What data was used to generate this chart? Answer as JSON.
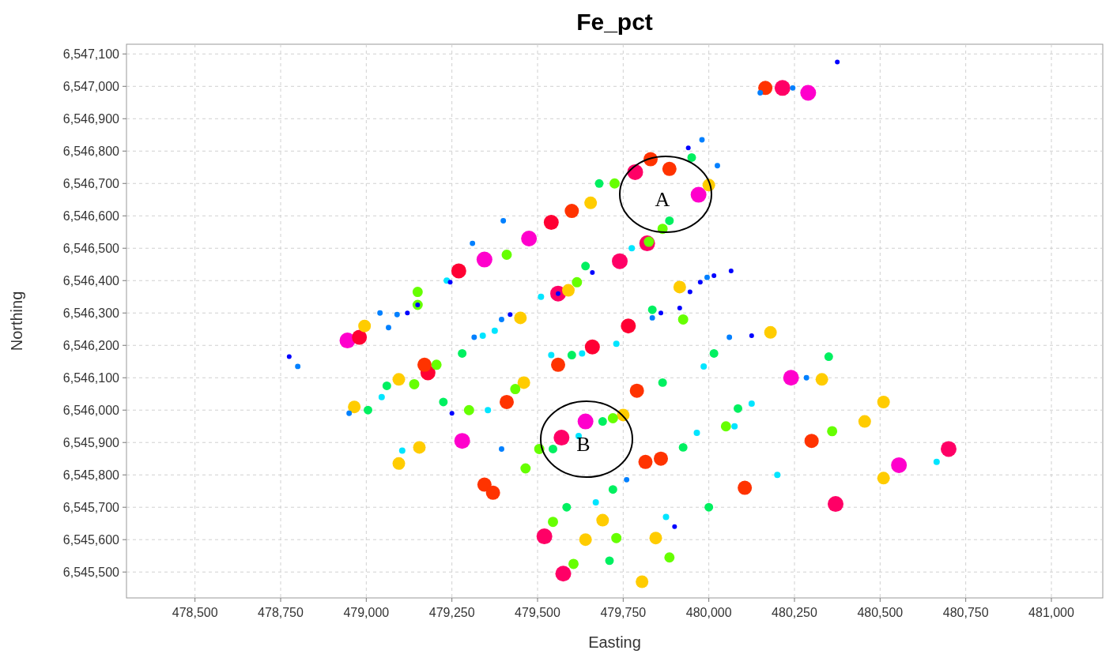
{
  "chart_data": {
    "type": "bubble",
    "title": "Fe_pct",
    "xlabel": "Easting",
    "ylabel": "Northing",
    "xlim": [
      478300,
      481150
    ],
    "ylim": [
      6545420,
      6547130
    ],
    "xticks": [
      {
        "value": 478500,
        "label": "478,500"
      },
      {
        "value": 478750,
        "label": "478,750"
      },
      {
        "value": 479000,
        "label": "479,000"
      },
      {
        "value": 479250,
        "label": "479,250"
      },
      {
        "value": 479500,
        "label": "479,500"
      },
      {
        "value": 479750,
        "label": "479,750"
      },
      {
        "value": 480000,
        "label": "480,000"
      },
      {
        "value": 480250,
        "label": "480,250"
      },
      {
        "value": 480500,
        "label": "480,500"
      },
      {
        "value": 480750,
        "label": "480,750"
      },
      {
        "value": 481000,
        "label": "481,000"
      }
    ],
    "yticks": [
      {
        "value": 6545500,
        "label": "6,545,500"
      },
      {
        "value": 6545600,
        "label": "6,545,600"
      },
      {
        "value": 6545700,
        "label": "6,545,700"
      },
      {
        "value": 6545800,
        "label": "6,545,800"
      },
      {
        "value": 6545900,
        "label": "6,545,900"
      },
      {
        "value": 6546000,
        "label": "6,546,000"
      },
      {
        "value": 6546100,
        "label": "6,546,100"
      },
      {
        "value": 6546200,
        "label": "6,546,200"
      },
      {
        "value": 6546300,
        "label": "6,546,300"
      },
      {
        "value": 6546400,
        "label": "6,546,400"
      },
      {
        "value": 6546500,
        "label": "6,546,500"
      },
      {
        "value": 6546600,
        "label": "6,546,600"
      },
      {
        "value": 6546700,
        "label": "6,546,700"
      },
      {
        "value": 6546800,
        "label": "6,546,800"
      },
      {
        "value": 6546900,
        "label": "6,546,900"
      },
      {
        "value": 6547000,
        "label": "6,547,000"
      },
      {
        "value": 6547100,
        "label": "6,547,100"
      }
    ],
    "grid": true,
    "marker": "circle",
    "annotations": [
      "A",
      "B"
    ],
    "series": [
      {
        "color": "#0000ff",
        "x": [
          480375,
          479940,
          479120,
          479150,
          479245,
          479660,
          480065,
          480015,
          479975,
          479945,
          479860,
          479915,
          479420,
          480125,
          479250,
          479900,
          478775,
          479560
        ],
        "values": [
          6547075,
          6546810,
          6546300,
          6546325,
          6546395,
          6546425,
          6546430,
          6546415,
          6546395,
          6546365,
          6546300,
          6546315,
          6546295,
          6546230,
          6545990,
          6545640,
          6546165,
          6546360
        ],
        "sizes": [
          0.09,
          0.09,
          0.09,
          0.09,
          0.09,
          0.09,
          0.09,
          0.09,
          0.09,
          0.09,
          0.09,
          0.09,
          0.09,
          0.09,
          0.09,
          0.09,
          0.09,
          0.09
        ]
      },
      {
        "color": "#0080ff",
        "x": [
          480150,
          480245,
          479040,
          479090,
          479065,
          479310,
          479400,
          479980,
          480025,
          479995,
          479835,
          479395,
          479315,
          480060,
          478950,
          479395,
          479760,
          480285,
          478800
        ],
        "values": [
          6546980,
          6546995,
          6546300,
          6546295,
          6546255,
          6546515,
          6546585,
          6546835,
          6546755,
          6546410,
          6546285,
          6546280,
          6546225,
          6546225,
          6545990,
          6545880,
          6545785,
          6546100,
          6546135
        ],
        "sizes": [
          0.12,
          0.12,
          0.12,
          0.12,
          0.12,
          0.12,
          0.12,
          0.12,
          0.12,
          0.12,
          0.12,
          0.12,
          0.12,
          0.12,
          0.12,
          0.12,
          0.12,
          0.12,
          0.12
        ]
      },
      {
        "color": "#00e5ff",
        "x": [
          479235,
          479510,
          479375,
          479340,
          479775,
          479730,
          479630,
          479540,
          479985,
          479045,
          479355,
          479620,
          479105,
          479965,
          480125,
          480075,
          479670,
          479875,
          480665,
          480200
        ],
        "values": [
          6546400,
          6546350,
          6546245,
          6546230,
          6546500,
          6546205,
          6546175,
          6546170,
          6546135,
          6546040,
          6546000,
          6545920,
          6545875,
          6545930,
          6546020,
          6545950,
          6545715,
          6545670,
          6545840,
          6545800
        ],
        "sizes": [
          0.16,
          0.16,
          0.16,
          0.16,
          0.16,
          0.16,
          0.16,
          0.16,
          0.16,
          0.16,
          0.16,
          0.16,
          0.16,
          0.16,
          0.16,
          0.16,
          0.16,
          0.16,
          0.16,
          0.16
        ]
      },
      {
        "color": "#00f060",
        "x": [
          479950,
          479680,
          479885,
          479640,
          479835,
          479280,
          479600,
          480015,
          479865,
          479060,
          479005,
          479225,
          479690,
          479545,
          479925,
          480085,
          479720,
          479585,
          480000,
          479710,
          480350
        ],
        "values": [
          6546780,
          6546700,
          6546585,
          6546445,
          6546310,
          6546175,
          6546170,
          6546175,
          6546085,
          6546075,
          6546000,
          6546025,
          6545965,
          6545880,
          6545885,
          6546005,
          6545755,
          6545700,
          6545700,
          6545535,
          6546165
        ],
        "sizes": [
          0.3,
          0.3,
          0.3,
          0.3,
          0.3,
          0.3,
          0.3,
          0.3,
          0.3,
          0.3,
          0.3,
          0.3,
          0.3,
          0.3,
          0.3,
          0.3,
          0.3,
          0.3,
          0.3,
          0.3,
          0.3
        ]
      },
      {
        "color": "#66ff00",
        "x": [
          479725,
          479865,
          479825,
          479615,
          479410,
          479150,
          479150,
          479925,
          479205,
          479140,
          479300,
          479435,
          479720,
          479505,
          479465,
          480050,
          479545,
          479730,
          479885,
          479605,
          480360
        ],
        "values": [
          6546700,
          6546560,
          6546520,
          6546395,
          6546480,
          6546365,
          6546325,
          6546280,
          6546140,
          6546080,
          6546000,
          6546065,
          6545975,
          6545880,
          6545820,
          6545950,
          6545655,
          6545605,
          6545545,
          6545525,
          6545935
        ],
        "sizes": [
          0.42,
          0.42,
          0.42,
          0.42,
          0.42,
          0.42,
          0.42,
          0.42,
          0.42,
          0.42,
          0.42,
          0.42,
          0.42,
          0.42,
          0.42,
          0.42,
          0.42,
          0.42,
          0.42,
          0.42,
          0.42
        ]
      },
      {
        "color": "#ffcc00",
        "x": [
          480000,
          479655,
          479915,
          479590,
          479450,
          478995,
          479095,
          479460,
          478965,
          479750,
          479155,
          479095,
          479690,
          479640,
          479845,
          479805,
          480180,
          480330,
          480510,
          480455,
          480510
        ],
        "values": [
          6546695,
          6546640,
          6546380,
          6546370,
          6546285,
          6546260,
          6546095,
          6546085,
          6546010,
          6545985,
          6545885,
          6545835,
          6545660,
          6545600,
          6545605,
          6545470,
          6546240,
          6546095,
          6546025,
          6545965,
          6545790
        ],
        "sizes": [
          0.64,
          0.64,
          0.64,
          0.64,
          0.64,
          0.64,
          0.64,
          0.64,
          0.64,
          0.64,
          0.64,
          0.64,
          0.64,
          0.64,
          0.64,
          0.64,
          0.64,
          0.64,
          0.64,
          0.64,
          0.64
        ]
      },
      {
        "color": "#ff3300",
        "x": [
          480165,
          479830,
          479885,
          479600,
          479560,
          479790,
          479170,
          479410,
          479345,
          479370,
          479815,
          479860,
          480105,
          480300
        ],
        "values": [
          6546995,
          6546775,
          6546745,
          6546615,
          6546140,
          6546060,
          6546140,
          6546025,
          6545770,
          6545745,
          6545840,
          6545850,
          6545760,
          6545905
        ],
        "sizes": [
          0.81,
          0.81,
          0.81,
          0.81,
          0.81,
          0.81,
          0.81,
          0.81,
          0.81,
          0.81,
          0.81,
          0.81,
          0.81,
          0.81
        ]
      },
      {
        "color": "#ff0033",
        "x": [
          479270,
          479540,
          479765,
          479660,
          478980,
          479180
        ],
        "values": [
          6546430,
          6546580,
          6546260,
          6546195,
          6546225,
          6546115
        ],
        "sizes": [
          0.9,
          0.9,
          0.9,
          0.9,
          0.9,
          0.9
        ]
      },
      {
        "color": "#ff0066",
        "x": [
          480215,
          479785,
          479820,
          479740,
          479560,
          479570,
          479520,
          479575,
          480700,
          480370
        ],
        "values": [
          6546995,
          6546735,
          6546515,
          6546460,
          6546360,
          6545915,
          6545610,
          6545495,
          6545880,
          6545710
        ],
        "sizes": [
          1,
          1,
          1,
          1,
          1,
          1,
          1,
          1,
          1,
          1
        ]
      },
      {
        "color": "#ff00cc",
        "x": [
          480290,
          479970,
          479345,
          479475,
          478945,
          479640,
          479280,
          480240,
          480555
        ],
        "values": [
          6546980,
          6546665,
          6546465,
          6546530,
          6546215,
          6545965,
          6545905,
          6546100,
          6545830
        ],
        "sizes": [
          1,
          1,
          1,
          1,
          1,
          1,
          1,
          1,
          1
        ]
      }
    ]
  }
}
